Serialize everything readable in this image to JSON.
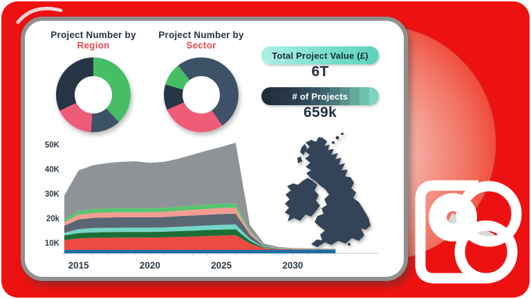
{
  "donuts": [
    {
      "title_top": "Project Number by",
      "title_accent": "Region"
    },
    {
      "title_top": "Project Number by",
      "title_accent": "Sector"
    }
  ],
  "kpis": [
    {
      "label": "Total Project Value (£)",
      "value": "6T",
      "text_color": "#1d2b3a",
      "steps": [
        "#aaeee2",
        "#a0ebde",
        "#96e8da",
        "#8de5d6",
        "#84e2d1",
        "#7bdfcd",
        "#73dcc9",
        "#6cd9c5",
        "#66d6c1",
        "#60d3bd"
      ]
    },
    {
      "label": "# of Projects",
      "value": "659k",
      "text_color": "#ffffff",
      "steps": [
        "#212d3c",
        "#243242",
        "#273848",
        "#2b3f50",
        "#304a59",
        "#365664",
        "#3f6670",
        "#4a7a7d",
        "#57928c",
        "#64aa9b",
        "#70c1ab",
        "#7cd5c0"
      ]
    }
  ],
  "colors": {
    "background_red": "#ee1111",
    "card_border": "#909090",
    "title_navy": "#28323e",
    "title_accent_red": "#e94a52",
    "axis_text": "#2b3947",
    "axis_line": "#d6d6d6",
    "map_fill": "#334459"
  },
  "chart_data": [
    {
      "type": "pie",
      "subtype": "donut",
      "title": "Project Number by Region",
      "start_deg": 0,
      "slices": [
        {
          "label": "green",
          "pct": 38,
          "color": "#47bd66"
        },
        {
          "label": "slate",
          "pct": 13,
          "color": "#3d5266"
        },
        {
          "label": "pink",
          "pct": 17,
          "color": "#ee5c78"
        },
        {
          "label": "navy",
          "pct": 32,
          "color": "#263645"
        }
      ]
    },
    {
      "type": "pie",
      "subtype": "donut",
      "title": "Project Number by Sector",
      "start_deg": 322,
      "slices": [
        {
          "label": "slate",
          "pct": 51,
          "color": "#3d5266"
        },
        {
          "label": "pink",
          "pct": 28,
          "color": "#ee5c78"
        },
        {
          "label": "navy",
          "pct": 11,
          "color": "#263645"
        },
        {
          "label": "green",
          "pct": 10,
          "color": "#47bd66"
        }
      ]
    },
    {
      "type": "area",
      "stacked": true,
      "title": "Projects over time",
      "x": [
        2014,
        2015,
        2016,
        2017,
        2018,
        2019,
        2020,
        2021,
        2022,
        2023,
        2024,
        2025,
        2026,
        2027,
        2028,
        2029,
        2030,
        2031,
        2032,
        2033
      ],
      "x_ticks": [
        2015,
        2020,
        2025,
        2030
      ],
      "y_ticks": [
        "10K",
        "20k",
        "30K",
        "40K",
        "50K"
      ],
      "ylim": [
        0,
        52000
      ],
      "series": [
        {
          "name": "blue",
          "color": "#1f6da1",
          "values": [
            1600,
            1600,
            1600,
            1600,
            1600,
            1600,
            1600,
            1600,
            1600,
            1600,
            1600,
            1600,
            1600,
            1600,
            1600,
            1600,
            1600,
            1600,
            1600,
            1600
          ]
        },
        {
          "name": "red",
          "color": "#ec4a42",
          "values": [
            4500,
            5300,
            5500,
            5600,
            5700,
            5700,
            5700,
            5800,
            6000,
            6200,
            6400,
            6600,
            6800,
            3000,
            600,
            300,
            200,
            150,
            100,
            100
          ]
        },
        {
          "name": "darkgreen",
          "color": "#1d6e35",
          "values": [
            2200,
            2500,
            2600,
            2600,
            2600,
            2600,
            2600,
            2600,
            2700,
            2700,
            2800,
            2800,
            2800,
            1200,
            300,
            150,
            100,
            100,
            50,
            50
          ]
        },
        {
          "name": "teal",
          "color": "#74d6c8",
          "values": [
            1200,
            1800,
            2000,
            2000,
            2000,
            2000,
            2000,
            2000,
            2000,
            2100,
            2100,
            2200,
            2200,
            900,
            200,
            100,
            50,
            50,
            50,
            50
          ]
        },
        {
          "name": "slate",
          "color": "#5a6673",
          "values": [
            3200,
            4500,
            4700,
            4800,
            4800,
            4800,
            4800,
            4800,
            4900,
            4900,
            5000,
            5000,
            5000,
            2000,
            400,
            200,
            100,
            100,
            50,
            50
          ]
        },
        {
          "name": "salmon",
          "color": "#f49c92",
          "values": [
            1800,
            2200,
            2300,
            2300,
            2300,
            2300,
            2300,
            2400,
            2500,
            2600,
            2700,
            2800,
            2800,
            1100,
            200,
            100,
            50,
            50,
            50,
            50
          ]
        },
        {
          "name": "lightgreen",
          "color": "#56c56f",
          "values": [
            1300,
            1700,
            1800,
            1900,
            1900,
            1900,
            1900,
            1900,
            1900,
            2000,
            2000,
            2000,
            2000,
            800,
            200,
            100,
            50,
            50,
            50,
            50
          ]
        },
        {
          "name": "gray",
          "color": "#8e9398",
          "values": [
            11000,
            18800,
            20300,
            21000,
            21500,
            21700,
            21000,
            21300,
            22200,
            23600,
            25000,
            26300,
            28000,
            2500,
            1000,
            400,
            300,
            200,
            200,
            200
          ]
        }
      ]
    }
  ]
}
